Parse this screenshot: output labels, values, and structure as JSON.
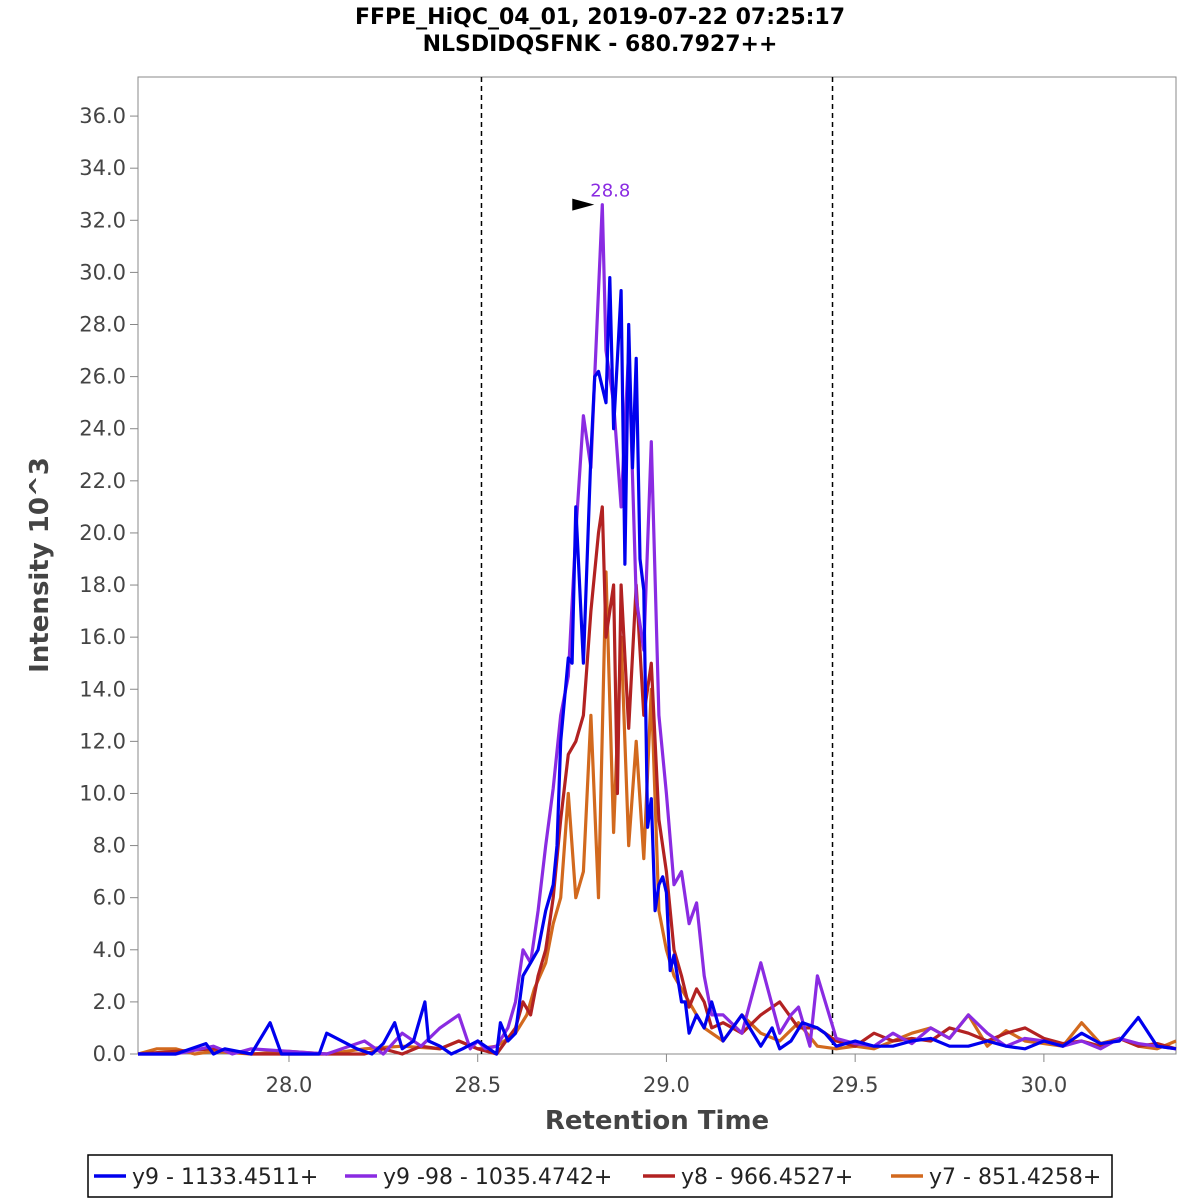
{
  "chart_data": {
    "type": "line",
    "title": "FFPE_HiQC_04_01, 2019-07-22 07:25:17",
    "subtitle": "NLSDIDQSFNK - 680.7927++",
    "xlabel": "Retention Time",
    "ylabel": "Intensity 10^3",
    "xlim": [
      27.6,
      30.35
    ],
    "ylim": [
      0,
      37.5
    ],
    "xticks": [
      "28.0",
      "28.5",
      "29.0",
      "29.5",
      "30.0"
    ],
    "yticks": [
      "0.0",
      "2.0",
      "4.0",
      "6.0",
      "8.0",
      "10.0",
      "12.0",
      "14.0",
      "16.0",
      "18.0",
      "20.0",
      "22.0",
      "24.0",
      "26.0",
      "28.0",
      "30.0",
      "32.0",
      "34.0",
      "36.0"
    ],
    "boundaries": [
      28.51,
      29.44
    ],
    "peak_annotation": {
      "label": "28.8",
      "x": 28.83,
      "y": 32.6,
      "color": "#8a2be2"
    },
    "grid": false,
    "legend_position": "bottom",
    "series": [
      {
        "name": "y9 - 1133.4511+",
        "color": "#0000ee",
        "x": [
          27.6,
          27.7,
          27.78,
          27.8,
          27.83,
          27.9,
          27.95,
          27.98,
          28.08,
          28.1,
          28.18,
          28.22,
          28.25,
          28.28,
          28.3,
          28.33,
          28.36,
          28.37,
          28.4,
          28.43,
          28.46,
          28.5,
          28.52,
          28.55,
          28.56,
          28.58,
          28.6,
          28.62,
          28.64,
          28.66,
          28.68,
          28.7,
          28.71,
          28.72,
          28.74,
          28.75,
          28.76,
          28.78,
          28.8,
          28.81,
          28.82,
          28.84,
          28.85,
          28.86,
          28.88,
          28.89,
          28.9,
          28.91,
          28.92,
          28.93,
          28.94,
          28.95,
          28.96,
          28.97,
          28.98,
          28.99,
          29.0,
          29.01,
          29.02,
          29.04,
          29.05,
          29.06,
          29.08,
          29.1,
          29.12,
          29.15,
          29.2,
          29.25,
          29.28,
          29.3,
          29.33,
          29.36,
          29.4,
          29.42,
          29.45,
          29.5,
          29.55,
          29.6,
          29.65,
          29.7,
          29.75,
          29.8,
          29.85,
          29.9,
          29.95,
          30.0,
          30.05,
          30.1,
          30.15,
          30.2,
          30.25,
          30.3,
          30.35
        ],
        "values": [
          0,
          0,
          0.4,
          0,
          0.2,
          0,
          1.2,
          0,
          0,
          0.8,
          0.2,
          0,
          0.4,
          1.2,
          0.2,
          0.5,
          2,
          0.5,
          0.3,
          0,
          0.2,
          0.5,
          0.3,
          0,
          1.2,
          0.5,
          0.8,
          3,
          3.5,
          4,
          5.5,
          6.5,
          8,
          12,
          15.2,
          15,
          21,
          15,
          23,
          26,
          26.2,
          25,
          29.8,
          24,
          29.3,
          18.8,
          28,
          22.5,
          26.7,
          19,
          17.8,
          8.7,
          9.8,
          5.5,
          6.5,
          6.8,
          6.2,
          3.2,
          3.8,
          2,
          2,
          0.8,
          1.5,
          1,
          2,
          0.5,
          1.5,
          0.3,
          1,
          0.2,
          0.5,
          1.2,
          1,
          0.8,
          0.3,
          0.5,
          0.3,
          0.3,
          0.5,
          0.6,
          0.3,
          0.3,
          0.5,
          0.3,
          0.2,
          0.5,
          0.3,
          0.8,
          0.4,
          0.5,
          1.4,
          0.3,
          0.2
        ]
      },
      {
        "name": "y9 -98 - 1035.4742+",
        "color": "#8a2be2",
        "x": [
          27.6,
          27.7,
          27.8,
          27.85,
          27.9,
          28.0,
          28.1,
          28.2,
          28.25,
          28.3,
          28.35,
          28.4,
          28.45,
          28.48,
          28.5,
          28.52,
          28.55,
          28.58,
          28.6,
          28.62,
          28.64,
          28.66,
          28.68,
          28.7,
          28.72,
          28.74,
          28.76,
          28.78,
          28.8,
          28.81,
          28.83,
          28.84,
          28.86,
          28.88,
          28.9,
          28.92,
          28.94,
          28.96,
          28.98,
          29.0,
          29.02,
          29.04,
          29.06,
          29.08,
          29.1,
          29.12,
          29.15,
          29.2,
          29.25,
          29.3,
          29.33,
          29.35,
          29.38,
          29.4,
          29.45,
          29.5,
          29.55,
          29.6,
          29.65,
          29.7,
          29.75,
          29.8,
          29.85,
          29.9,
          29.95,
          30.0,
          30.05,
          30.1,
          30.15,
          30.2,
          30.25,
          30.3,
          30.35
        ],
        "values": [
          0,
          0,
          0.3,
          0,
          0.2,
          0.1,
          0,
          0.5,
          0,
          0.8,
          0.3,
          1,
          1.5,
          0.2,
          0.5,
          0.2,
          0.3,
          1,
          2,
          4,
          3.5,
          5.5,
          8,
          10.2,
          13,
          14.5,
          20,
          24.5,
          22.5,
          26,
          32.6,
          27,
          25,
          21,
          27,
          17.5,
          15.5,
          23.5,
          13,
          10,
          6.5,
          7,
          5,
          5.8,
          3,
          1.5,
          1.5,
          0.8,
          3.5,
          0.8,
          1.5,
          1.8,
          0.3,
          3,
          0.6,
          0.4,
          0.3,
          0.8,
          0.4,
          1,
          0.6,
          1.5,
          0.8,
          0.3,
          0.6,
          0.5,
          0.3,
          0.5,
          0.2,
          0.6,
          0.4,
          0.3,
          0.2
        ]
      },
      {
        "name": "y8 - 966.4527+",
        "color": "#b22222",
        "x": [
          27.6,
          27.7,
          27.8,
          27.9,
          28.0,
          28.2,
          28.25,
          28.3,
          28.35,
          28.4,
          28.45,
          28.5,
          28.55,
          28.6,
          28.62,
          28.64,
          28.66,
          28.68,
          28.7,
          28.72,
          28.74,
          28.76,
          28.78,
          28.8,
          28.82,
          28.83,
          28.84,
          28.86,
          28.87,
          28.88,
          28.9,
          28.92,
          28.94,
          28.96,
          28.98,
          29.0,
          29.02,
          29.04,
          29.06,
          29.08,
          29.1,
          29.12,
          29.15,
          29.2,
          29.25,
          29.3,
          29.35,
          29.4,
          29.45,
          29.5,
          29.55,
          29.6,
          29.65,
          29.7,
          29.75,
          29.8,
          29.85,
          29.9,
          29.95,
          30.0,
          30.05,
          30.1,
          30.15,
          30.2,
          30.25,
          30.3,
          30.35
        ],
        "values": [
          0,
          0.1,
          0.2,
          0,
          0,
          0,
          0.2,
          0,
          0.3,
          0.2,
          0.5,
          0.2,
          0,
          1,
          2,
          1.5,
          3,
          4,
          6,
          9,
          11.5,
          12,
          13,
          17,
          20,
          21,
          16,
          18,
          10,
          18,
          12.5,
          18,
          13,
          15,
          9,
          7,
          4,
          3,
          1.8,
          2.5,
          2,
          1,
          1.2,
          0.8,
          1.5,
          2,
          1,
          1,
          0.5,
          0.3,
          0.8,
          0.5,
          0.6,
          0.5,
          1,
          0.8,
          0.5,
          0.8,
          1,
          0.6,
          0.4,
          0.5,
          0.3,
          0.6,
          0.3,
          0.4,
          0.2
        ]
      },
      {
        "name": "y7 - 851.4258+",
        "color": "#d2691e",
        "x": [
          27.6,
          27.65,
          27.7,
          27.75,
          27.8,
          27.9,
          28.0,
          28.1,
          28.2,
          28.3,
          28.4,
          28.45,
          28.5,
          28.55,
          28.6,
          28.63,
          28.65,
          28.68,
          28.7,
          28.72,
          28.74,
          28.76,
          28.78,
          28.8,
          28.82,
          28.84,
          28.86,
          28.88,
          28.9,
          28.92,
          28.94,
          28.96,
          28.98,
          29.0,
          29.02,
          29.04,
          29.06,
          29.08,
          29.1,
          29.15,
          29.2,
          29.25,
          29.3,
          29.35,
          29.4,
          29.45,
          29.5,
          29.55,
          29.6,
          29.65,
          29.7,
          29.75,
          29.8,
          29.85,
          29.9,
          29.95,
          30.0,
          30.05,
          30.1,
          30.15,
          30.2,
          30.25,
          30.3,
          30.35
        ],
        "values": [
          0,
          0.2,
          0.2,
          0,
          0.1,
          0,
          0.1,
          0,
          0.2,
          0.3,
          0.2,
          0.5,
          0.2,
          0.3,
          0.8,
          1.5,
          2.5,
          3.5,
          5,
          6,
          10,
          6,
          7,
          13,
          6,
          18.5,
          8.5,
          16,
          8,
          12,
          7.5,
          14,
          5.5,
          4,
          3,
          2.5,
          2,
          1.5,
          1,
          0.5,
          1.5,
          0.8,
          0.5,
          1.2,
          0.3,
          0.2,
          0.3,
          0.2,
          0.5,
          0.8,
          1,
          0.6,
          1.5,
          0.3,
          0.9,
          0.5,
          0.4,
          0.3,
          1.2,
          0.4,
          0.6,
          0.3,
          0.2,
          0.5
        ]
      }
    ]
  }
}
